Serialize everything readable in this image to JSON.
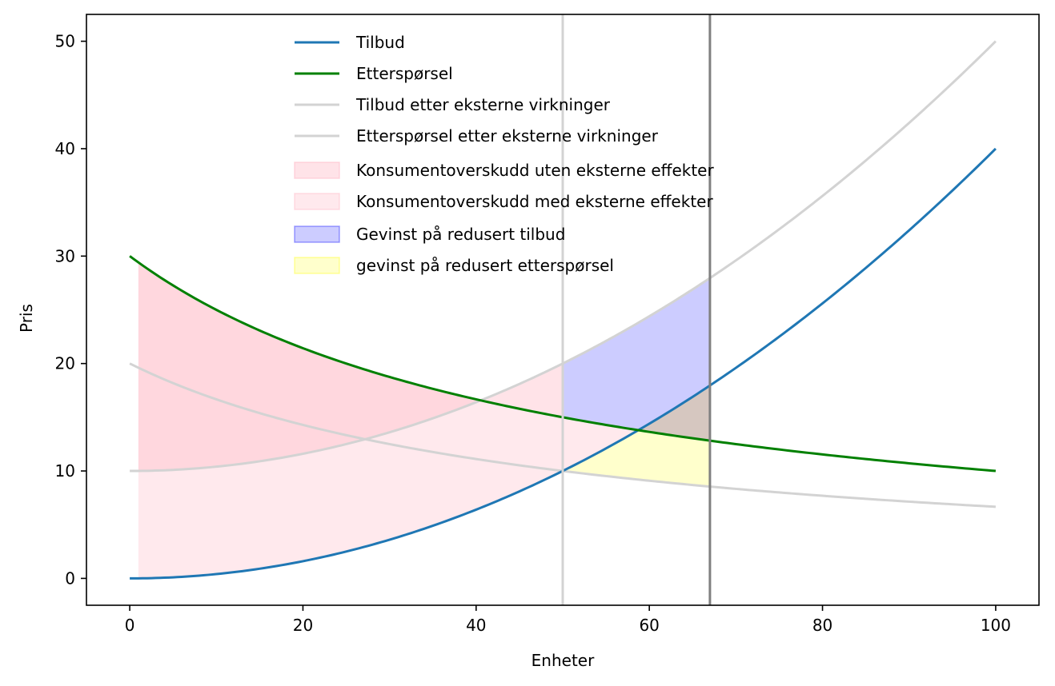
{
  "chart_data": {
    "type": "line",
    "title": "",
    "xlabel": "Enheter",
    "ylabel": "Pris",
    "xlim": [
      -5,
      105
    ],
    "ylim": [
      -2.5,
      52.5
    ],
    "x_ticks": [
      0,
      20,
      40,
      60,
      80,
      100
    ],
    "y_ticks": [
      0,
      10,
      20,
      30,
      40,
      50
    ],
    "x_tick_labels": [
      "0",
      "20",
      "40",
      "60",
      "80",
      "100"
    ],
    "y_tick_labels": [
      "0",
      "10",
      "20",
      "30",
      "40",
      "50"
    ],
    "grid": false,
    "legend_position": "upper center",
    "series": [
      {
        "name": "Tilbud",
        "color": "#1f77b4",
        "formula": "0.004*x^2",
        "x": [
          0,
          25,
          50,
          67,
          75,
          100
        ],
        "y": [
          0,
          2.5,
          10,
          17.96,
          22.5,
          40
        ]
      },
      {
        "name": "Etterspørsel",
        "color": "#008000",
        "formula": "1500/(x+50)",
        "x": [
          0,
          25,
          50,
          67,
          75,
          100
        ],
        "y": [
          30,
          20,
          15,
          12.82,
          12,
          10
        ]
      },
      {
        "name": "Tilbud etter eksterne virkninger",
        "color": "#d3d3d3",
        "formula": "10+0.004*x^2",
        "x": [
          0,
          25,
          50,
          67,
          75,
          100
        ],
        "y": [
          10,
          12.5,
          20,
          27.96,
          32.5,
          50
        ]
      },
      {
        "name": "Etterspørsel etter eksterne virkninger",
        "color": "#d3d3d3",
        "formula": "1000/(x+50)",
        "x": [
          0,
          25,
          50,
          67,
          75,
          100
        ],
        "y": [
          20,
          13.33,
          10,
          8.55,
          8,
          5
        ]
      }
    ],
    "areas": [
      {
        "name": "Konsumentoverskudd uten eksterne effekter",
        "color": "#ffc0cb",
        "x_range": [
          1,
          50
        ],
        "upper": "Etterspørsel",
        "lower": "Tilbud etter eksterne virkninger"
      },
      {
        "name": "Konsumentoverskudd med eksterne effekter",
        "color": "#ffc0cb",
        "x_range": [
          1,
          67
        ],
        "upper": "Etterspørsel",
        "lower": "Tilbud"
      },
      {
        "name": "Gevinst på redusert tilbud",
        "color": "#0000ff",
        "x_range": [
          50,
          67
        ],
        "upper": "Tilbud etter eksterne virkninger",
        "lower": "Etterspørsel"
      },
      {
        "name": "gevinst på redusert etterspørsel",
        "color": "#ffff00",
        "x_range": [
          50,
          67
        ],
        "upper": "Tilbud",
        "lower": "Etterspørsel etter eksterne virkninger"
      }
    ],
    "vertical_lines": [
      {
        "x": 50,
        "color": "#d3d3d3"
      },
      {
        "x": 67,
        "color": "#808080"
      }
    ]
  }
}
